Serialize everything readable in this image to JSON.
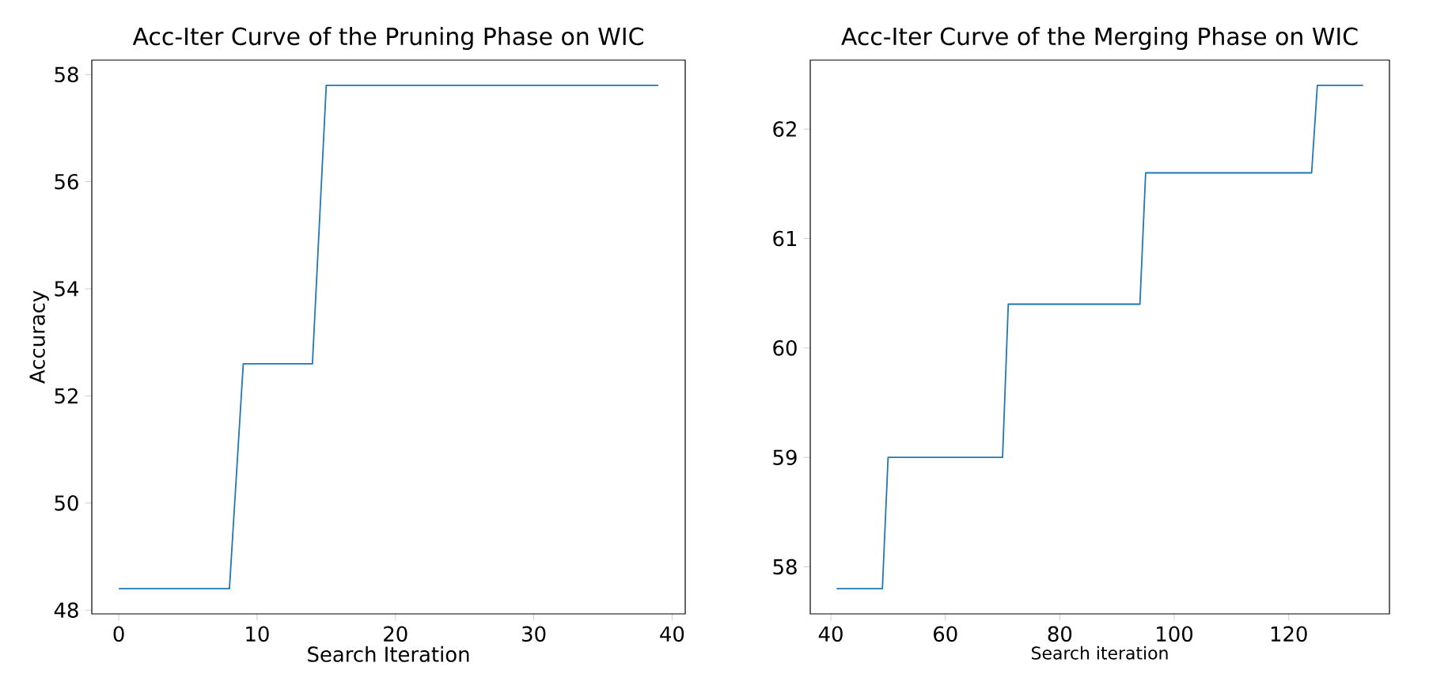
{
  "chart_data": [
    {
      "type": "line",
      "title": "Acc-Iter Curve of the Pruning Phase on WIC",
      "xlabel": "Search Iteration",
      "ylabel": "Accuracy",
      "x": [
        0,
        1,
        2,
        3,
        4,
        5,
        6,
        7,
        8,
        9,
        10,
        11,
        12,
        13,
        14,
        15,
        16,
        17,
        18,
        19,
        20,
        21,
        22,
        23,
        24,
        25,
        26,
        27,
        28,
        29,
        30,
        31,
        32,
        33,
        34,
        35,
        36,
        37,
        38,
        39
      ],
      "series": [
        {
          "color": "#1f77b4",
          "values": [
            48.4,
            48.4,
            48.4,
            48.4,
            48.4,
            48.4,
            48.4,
            48.4,
            48.4,
            52.6,
            52.6,
            52.6,
            52.6,
            52.6,
            52.6,
            57.8,
            57.8,
            57.8,
            57.8,
            57.8,
            57.8,
            57.8,
            57.8,
            57.8,
            57.8,
            57.8,
            57.8,
            57.8,
            57.8,
            57.8,
            57.8,
            57.8,
            57.8,
            57.8,
            57.8,
            57.8,
            57.8,
            57.8,
            57.8,
            57.8
          ]
        }
      ],
      "xlim": [
        -1.95,
        40.95
      ],
      "ylim": [
        47.93,
        58.27
      ],
      "xticks": [
        0,
        10,
        20,
        30,
        40
      ],
      "yticks": [
        48,
        50,
        52,
        54,
        56,
        58
      ]
    },
    {
      "type": "line",
      "title": "Acc-Iter Curve of the Merging Phase on WIC",
      "xlabel": "Search iteration",
      "x": [
        41,
        42,
        43,
        44,
        45,
        46,
        47,
        48,
        49,
        50,
        51,
        52,
        53,
        54,
        55,
        56,
        57,
        58,
        59,
        60,
        61,
        62,
        63,
        64,
        65,
        66,
        67,
        68,
        69,
        70,
        71,
        72,
        73,
        74,
        75,
        76,
        77,
        78,
        79,
        80,
        81,
        82,
        83,
        84,
        85,
        86,
        87,
        88,
        89,
        90,
        91,
        92,
        93,
        94,
        95,
        96,
        97,
        98,
        99,
        100,
        101,
        102,
        103,
        104,
        105,
        106,
        107,
        108,
        109,
        110,
        111,
        112,
        113,
        114,
        115,
        116,
        117,
        118,
        119,
        120,
        121,
        122,
        123,
        124,
        125,
        126,
        127,
        128,
        129,
        130,
        131,
        132,
        133
      ],
      "series": [
        {
          "color": "#1f77b4",
          "values": [
            57.8,
            57.8,
            57.8,
            57.8,
            57.8,
            57.8,
            57.8,
            57.8,
            57.8,
            59.0,
            59.0,
            59.0,
            59.0,
            59.0,
            59.0,
            59.0,
            59.0,
            59.0,
            59.0,
            59.0,
            59.0,
            59.0,
            59.0,
            59.0,
            59.0,
            59.0,
            59.0,
            59.0,
            59.0,
            59.0,
            60.4,
            60.4,
            60.4,
            60.4,
            60.4,
            60.4,
            60.4,
            60.4,
            60.4,
            60.4,
            60.4,
            60.4,
            60.4,
            60.4,
            60.4,
            60.4,
            60.4,
            60.4,
            60.4,
            60.4,
            60.4,
            60.4,
            60.4,
            60.4,
            61.6,
            61.6,
            61.6,
            61.6,
            61.6,
            61.6,
            61.6,
            61.6,
            61.6,
            61.6,
            61.6,
            61.6,
            61.6,
            61.6,
            61.6,
            61.6,
            61.6,
            61.6,
            61.6,
            61.6,
            61.6,
            61.6,
            61.6,
            61.6,
            61.6,
            61.6,
            61.6,
            61.6,
            61.6,
            61.6,
            62.4,
            62.4,
            62.4,
            62.4,
            62.4,
            62.4,
            62.4,
            62.4,
            62.4
          ]
        }
      ],
      "xlim": [
        36.4,
        137.6
      ],
      "ylim": [
        57.57,
        62.63
      ],
      "xticks": [
        40,
        60,
        80,
        100,
        120
      ],
      "yticks": [
        58,
        59,
        60,
        61,
        62
      ]
    }
  ]
}
